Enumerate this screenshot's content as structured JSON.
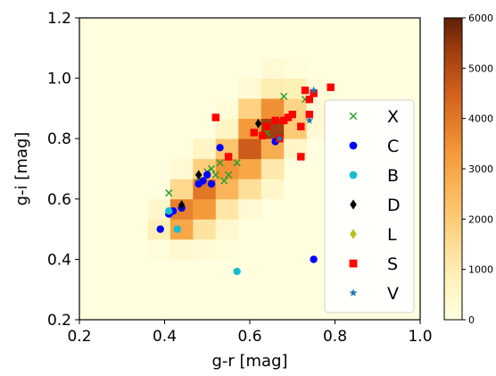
{
  "chart_data": {
    "type": "scatter",
    "xlabel": "g-r [mag]",
    "ylabel": "g-i [mag]",
    "xlim": [
      0.2,
      1.0
    ],
    "ylim": [
      0.2,
      1.2
    ],
    "xticks": [
      "0.2",
      "0.4",
      "0.6",
      "0.8",
      "1.0"
    ],
    "yticks": [
      "0.2",
      "0.4",
      "0.6",
      "0.8",
      "1.0",
      "1.2"
    ],
    "legend_position": "right",
    "heatmap": {
      "xbin_edges": [
        0.2,
        0.2533,
        0.3067,
        0.36,
        0.4133,
        0.4667,
        0.52,
        0.5733,
        0.6267,
        0.68,
        0.7333,
        0.7867,
        0.84,
        0.8933,
        0.9467,
        1.0
      ],
      "ybin_edges": [
        0.2,
        0.2667,
        0.3333,
        0.4,
        0.4667,
        0.5333,
        0.6,
        0.6667,
        0.7333,
        0.8,
        0.8667,
        0.9333,
        1.0,
        1.0667,
        1.1333,
        1.2
      ],
      "counts": [
        [
          0,
          0,
          0,
          0,
          0,
          0,
          0,
          0,
          0,
          0,
          0,
          0,
          0,
          0,
          0
        ],
        [
          0,
          0,
          0,
          0,
          0,
          0,
          0,
          0,
          0,
          0,
          0,
          0,
          0,
          0,
          0
        ],
        [
          0,
          0,
          0,
          0,
          0,
          0,
          0,
          0,
          0,
          0,
          0,
          0,
          0,
          0,
          0
        ],
        [
          0,
          0,
          0,
          150,
          400,
          300,
          150,
          0,
          0,
          0,
          0,
          0,
          0,
          0,
          0
        ],
        [
          0,
          0,
          0,
          900,
          3000,
          1300,
          400,
          0,
          0,
          0,
          0,
          0,
          0,
          0,
          0
        ],
        [
          0,
          0,
          0,
          400,
          3800,
          3300,
          1200,
          300,
          0,
          0,
          0,
          0,
          0,
          0,
          0
        ],
        [
          0,
          0,
          0,
          0,
          1600,
          4000,
          2600,
          1400,
          500,
          0,
          0,
          0,
          0,
          0,
          0
        ],
        [
          0,
          0,
          0,
          0,
          300,
          1900,
          3400,
          3000,
          1100,
          0,
          0,
          0,
          0,
          0,
          0
        ],
        [
          0,
          0,
          0,
          0,
          0,
          600,
          2200,
          4600,
          2800,
          600,
          0,
          0,
          0,
          0,
          0
        ],
        [
          0,
          0,
          0,
          0,
          0,
          0,
          600,
          3300,
          5300,
          2000,
          300,
          0,
          0,
          0,
          0
        ],
        [
          0,
          0,
          0,
          0,
          0,
          0,
          200,
          1800,
          3500,
          1700,
          300,
          0,
          0,
          0,
          0
        ],
        [
          0,
          0,
          0,
          0,
          0,
          0,
          0,
          300,
          1000,
          900,
          200,
          0,
          0,
          0,
          0
        ],
        [
          0,
          0,
          0,
          0,
          0,
          0,
          0,
          0,
          300,
          150,
          0,
          0,
          0,
          0,
          0
        ],
        [
          0,
          0,
          0,
          0,
          0,
          0,
          0,
          0,
          0,
          0,
          0,
          0,
          0,
          0,
          0
        ],
        [
          0,
          0,
          0,
          0,
          0,
          0,
          0,
          0,
          0,
          0,
          0,
          0,
          0,
          0,
          0
        ]
      ],
      "colorbar_ticks": [
        "0",
        "1000",
        "2000",
        "3000",
        "4000",
        "5000",
        "6000"
      ],
      "colorbar_range": [
        0,
        6000
      ]
    },
    "series": [
      {
        "name": "X",
        "marker": "x",
        "color": "#2ca02c",
        "points": [
          [
            0.41,
            0.62
          ],
          [
            0.5,
            0.69
          ],
          [
            0.51,
            0.7
          ],
          [
            0.52,
            0.68
          ],
          [
            0.53,
            0.72
          ],
          [
            0.54,
            0.66
          ],
          [
            0.57,
            0.72
          ],
          [
            0.64,
            0.82
          ],
          [
            0.68,
            0.94
          ],
          [
            0.7,
            0.88
          ],
          [
            0.73,
            0.93
          ],
          [
            0.48,
            0.67
          ],
          [
            0.55,
            0.68
          ]
        ]
      },
      {
        "name": "C",
        "marker": "circle",
        "color": "#0000ff",
        "points": [
          [
            0.39,
            0.5
          ],
          [
            0.41,
            0.55
          ],
          [
            0.42,
            0.56
          ],
          [
            0.44,
            0.57
          ],
          [
            0.48,
            0.65
          ],
          [
            0.49,
            0.66
          ],
          [
            0.5,
            0.68
          ],
          [
            0.51,
            0.65
          ],
          [
            0.53,
            0.77
          ],
          [
            0.66,
            0.79
          ],
          [
            0.75,
            0.4
          ]
        ]
      },
      {
        "name": "B",
        "marker": "circle",
        "color": "#17becf",
        "points": [
          [
            0.41,
            0.56
          ],
          [
            0.43,
            0.5
          ],
          [
            0.57,
            0.36
          ]
        ]
      },
      {
        "name": "D",
        "marker": "diamond",
        "color": "#000000",
        "points": [
          [
            0.44,
            0.58
          ],
          [
            0.48,
            0.68
          ],
          [
            0.62,
            0.85
          ]
        ]
      },
      {
        "name": "L",
        "marker": "diamond",
        "color": "#bcbd22",
        "points": []
      },
      {
        "name": "S",
        "marker": "square",
        "color": "#ff0000",
        "points": [
          [
            0.52,
            0.87
          ],
          [
            0.55,
            0.74
          ],
          [
            0.61,
            0.82
          ],
          [
            0.63,
            0.81
          ],
          [
            0.64,
            0.84
          ],
          [
            0.66,
            0.86
          ],
          [
            0.67,
            0.8
          ],
          [
            0.68,
            0.86
          ],
          [
            0.69,
            0.87
          ],
          [
            0.7,
            0.88
          ],
          [
            0.72,
            0.84
          ],
          [
            0.72,
            0.74
          ],
          [
            0.73,
            0.96
          ],
          [
            0.74,
            0.93
          ],
          [
            0.74,
            0.88
          ],
          [
            0.79,
            0.97
          ],
          [
            0.75,
            0.95
          ]
        ]
      },
      {
        "name": "V",
        "marker": "star",
        "color": "#1f77b4",
        "points": [
          [
            0.74,
            0.86
          ],
          [
            0.75,
            0.96
          ],
          [
            0.67,
            0.8
          ]
        ]
      }
    ]
  }
}
